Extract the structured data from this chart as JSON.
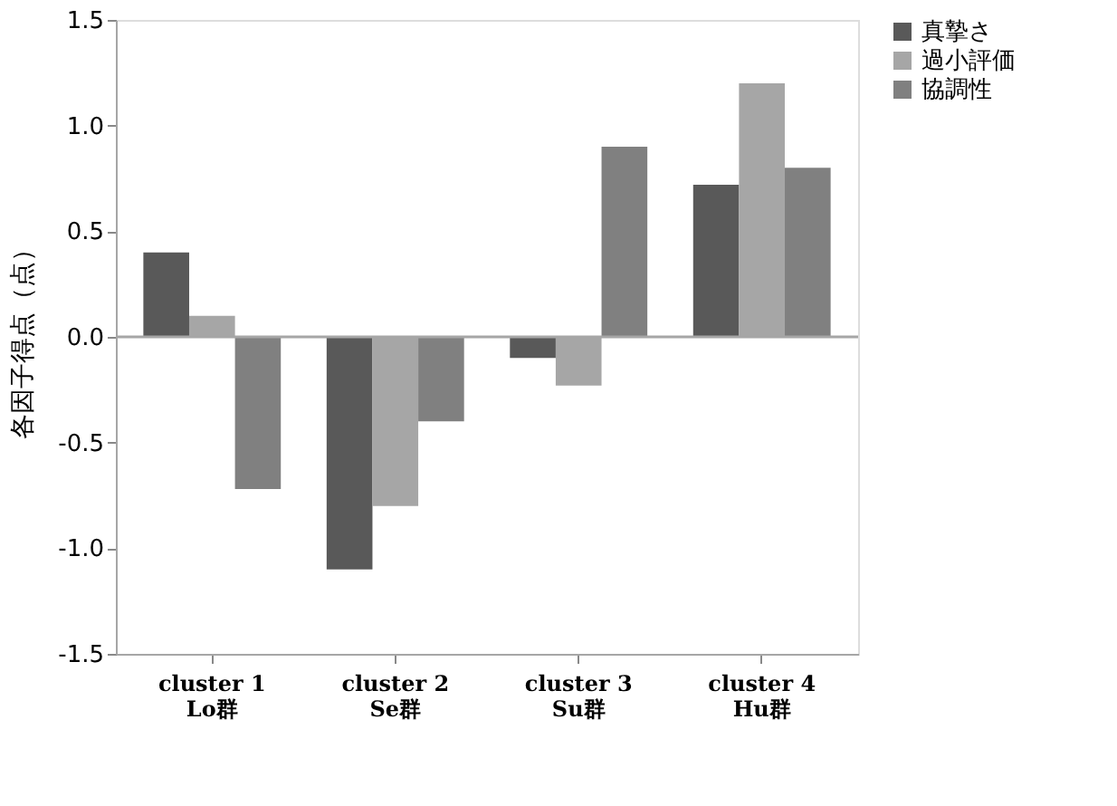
{
  "chart_data": {
    "type": "bar",
    "ylabel": "各因子得点（点）",
    "categories": [
      "cluster 1\nLo群",
      "cluster 2\nSe群",
      "cluster 3\nSu群",
      "cluster 4\nHu群"
    ],
    "series": [
      {
        "name": "真摯さ",
        "color": "#595959",
        "values": [
          0.4,
          -1.1,
          -0.1,
          0.72
        ]
      },
      {
        "name": "過小評価",
        "color": "#a6a6a6",
        "values": [
          0.1,
          -0.8,
          -0.23,
          1.2
        ]
      },
      {
        "name": "協調性",
        "color": "#808080",
        "values": [
          -0.72,
          -0.4,
          0.9,
          0.8
        ]
      }
    ],
    "ylim": [
      -1.5,
      1.5
    ],
    "yticks": [
      {
        "value": -1.5,
        "label": "-1.5"
      },
      {
        "value": -1.0,
        "label": "-1.0"
      },
      {
        "value": -0.5,
        "label": "-0.5"
      },
      {
        "value": 0.0,
        "label": "0.0"
      },
      {
        "value": 0.5,
        "label": "0.5"
      },
      {
        "value": 1.0,
        "label": "1.0"
      },
      {
        "value": 1.5,
        "label": "1.5"
      }
    ],
    "ref_lines": [
      {
        "axis": "y",
        "value": 0,
        "color": "#a6a6a6"
      }
    ],
    "grid": false,
    "legend": "right"
  }
}
